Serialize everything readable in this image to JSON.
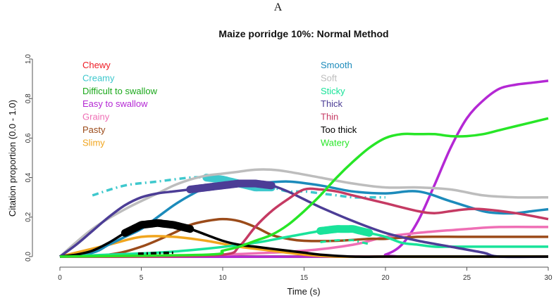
{
  "panel_letter": "A",
  "chart_data": {
    "type": "line",
    "title": "Maize porridge 10%: Normal Method",
    "xlabel": "Time (s)",
    "ylabel": "Citation proportion (0.0 - 1.0)",
    "xlim": [
      0,
      30
    ],
    "ylim": [
      0,
      1
    ],
    "xticks": [
      0,
      5,
      10,
      15,
      20,
      25,
      30
    ],
    "yticks": [
      0.0,
      0.2,
      0.4,
      0.6,
      0.8,
      1.0
    ],
    "grid": false,
    "legend_position": "top-left, two columns",
    "series": [
      {
        "name": "Chewy",
        "color": "#ee1c25",
        "x": [
          0,
          30
        ],
        "y": [
          0,
          0
        ]
      },
      {
        "name": "Creamy",
        "color": "#3ec8cd",
        "x": [
          2,
          4,
          6,
          8,
          9,
          10,
          11,
          12,
          13,
          14,
          15,
          16,
          17,
          18,
          19,
          20
        ],
        "y": [
          0.31,
          0.36,
          0.38,
          0.4,
          0.4,
          0.39,
          0.37,
          0.35,
          0.35,
          0.33,
          0.33,
          0.32,
          0.31,
          0.3,
          0.3,
          0.3
        ],
        "significance": [
          [
            2,
            9,
            "dash"
          ],
          [
            9,
            13,
            "bold"
          ],
          [
            13,
            20,
            "dash"
          ]
        ]
      },
      {
        "name": "Difficult to swallow",
        "color": "#1ba81b",
        "x": [
          0,
          30
        ],
        "y": [
          0,
          0
        ]
      },
      {
        "name": "Easy to swallow",
        "color": "#b428d4",
        "x": [
          0,
          19,
          20,
          21,
          22,
          23,
          24,
          25,
          26,
          27,
          28,
          29,
          30
        ],
        "y": [
          0,
          0,
          0.01,
          0.06,
          0.18,
          0.36,
          0.55,
          0.7,
          0.79,
          0.85,
          0.87,
          0.88,
          0.89
        ]
      },
      {
        "name": "Grainy",
        "color": "#ef6fb5",
        "x": [
          0,
          5,
          10,
          15,
          18,
          20,
          22,
          25,
          27,
          30
        ],
        "y": [
          0,
          0,
          0.01,
          0.03,
          0.06,
          0.1,
          0.12,
          0.14,
          0.15,
          0.15
        ]
      },
      {
        "name": "Pasty",
        "color": "#9b4b1a",
        "x": [
          0,
          3,
          5,
          7,
          8,
          9,
          10,
          11,
          12,
          13,
          14,
          15,
          17,
          19,
          20,
          22,
          25,
          30
        ],
        "y": [
          0,
          0.01,
          0.05,
          0.12,
          0.16,
          0.18,
          0.19,
          0.18,
          0.15,
          0.11,
          0.09,
          0.08,
          0.08,
          0.09,
          0.09,
          0.1,
          0.1,
          0.1
        ]
      },
      {
        "name": "Slimy",
        "color": "#f0a51e",
        "x": [
          0,
          3,
          5,
          7,
          9,
          11,
          13,
          15,
          17,
          20,
          25,
          30
        ],
        "y": [
          0,
          0.06,
          0.1,
          0.1,
          0.08,
          0.05,
          0.03,
          0.01,
          0.0,
          0.0,
          0.0,
          0.0
        ]
      },
      {
        "name": "Smooth",
        "color": "#1c8bbb",
        "x": [
          0,
          2,
          3,
          4,
          5,
          6,
          7,
          8,
          9,
          10,
          12,
          14,
          16,
          18,
          20,
          22,
          24,
          26,
          27,
          28,
          29,
          30
        ],
        "y": [
          0,
          0.02,
          0.06,
          0.1,
          0.14,
          0.2,
          0.26,
          0.31,
          0.35,
          0.36,
          0.37,
          0.38,
          0.36,
          0.33,
          0.32,
          0.33,
          0.28,
          0.23,
          0.22,
          0.22,
          0.23,
          0.24
        ]
      },
      {
        "name": "Soft",
        "color": "#bdbdbd",
        "x": [
          0,
          2,
          4,
          6,
          7,
          8,
          9,
          10,
          11,
          12,
          13,
          14,
          16,
          18,
          20,
          22,
          24,
          26,
          28,
          30
        ],
        "y": [
          0,
          0.14,
          0.24,
          0.32,
          0.36,
          0.39,
          0.41,
          0.42,
          0.43,
          0.44,
          0.44,
          0.43,
          0.4,
          0.37,
          0.35,
          0.35,
          0.34,
          0.31,
          0.3,
          0.3
        ]
      },
      {
        "name": "Sticky",
        "color": "#19e39a",
        "x": [
          0,
          3,
          6,
          9,
          12,
          14,
          16,
          17,
          18,
          19,
          20,
          21,
          22,
          23,
          24,
          25,
          26,
          27,
          28,
          29,
          30
        ],
        "y": [
          0,
          0.01,
          0.02,
          0.04,
          0.07,
          0.1,
          0.13,
          0.14,
          0.14,
          0.12,
          0.1,
          0.07,
          0.06,
          0.05,
          0.05,
          0.05,
          0.05,
          0.05,
          0.05,
          0.05,
          0.05
        ],
        "significance": [
          [
            16,
            19,
            "bold"
          ],
          [
            16,
            19,
            "dash"
          ]
        ]
      },
      {
        "name": "Thick",
        "color": "#4c3d96",
        "x": [
          0,
          1,
          2,
          3,
          4,
          5,
          6,
          7,
          8,
          9,
          10,
          11,
          12,
          13,
          14,
          15,
          16,
          18,
          20,
          22,
          24,
          26,
          27,
          30
        ],
        "y": [
          0,
          0.06,
          0.13,
          0.2,
          0.26,
          0.3,
          0.32,
          0.33,
          0.34,
          0.35,
          0.36,
          0.37,
          0.37,
          0.36,
          0.33,
          0.29,
          0.25,
          0.18,
          0.12,
          0.08,
          0.05,
          0.02,
          0.0,
          0.0
        ],
        "significance": [
          [
            8,
            13,
            "bold"
          ]
        ]
      },
      {
        "name": "Thin",
        "color": "#c53a63",
        "x": [
          0,
          5,
          10,
          11,
          12,
          13,
          14,
          15,
          16,
          17,
          18,
          20,
          22,
          23,
          24,
          25,
          26,
          28,
          30
        ],
        "y": [
          0,
          0,
          0.01,
          0.05,
          0.15,
          0.23,
          0.29,
          0.34,
          0.34,
          0.33,
          0.31,
          0.27,
          0.23,
          0.22,
          0.23,
          0.24,
          0.24,
          0.22,
          0.19
        ]
      },
      {
        "name": "Too thick",
        "color": "#000000",
        "x": [
          0,
          1,
          2,
          3,
          4,
          5,
          6,
          7,
          8,
          9,
          10,
          11,
          12,
          13,
          14,
          15,
          16,
          18,
          20,
          22,
          24,
          26,
          27,
          28,
          29,
          30
        ],
        "y": [
          0,
          0.01,
          0.03,
          0.07,
          0.12,
          0.16,
          0.17,
          0.16,
          0.14,
          0.11,
          0.08,
          0.06,
          0.05,
          0.04,
          0.03,
          0.02,
          0.01,
          0.0,
          0.0,
          0.0,
          0.0,
          0.0,
          0.0,
          0.0,
          0.0,
          0.0
        ],
        "significance": [
          [
            4,
            8,
            "bold"
          ]
        ]
      },
      {
        "name": "Watery",
        "color": "#27e627",
        "x": [
          0,
          9,
          10,
          11,
          12,
          13,
          14,
          15,
          16,
          17,
          18,
          19,
          20,
          21,
          22,
          23,
          24,
          25,
          26,
          27,
          28,
          29,
          30
        ],
        "y": [
          0,
          0.01,
          0.03,
          0.05,
          0.08,
          0.11,
          0.16,
          0.23,
          0.31,
          0.4,
          0.48,
          0.55,
          0.6,
          0.62,
          0.62,
          0.62,
          0.61,
          0.61,
          0.62,
          0.64,
          0.66,
          0.68,
          0.7
        ]
      }
    ]
  }
}
